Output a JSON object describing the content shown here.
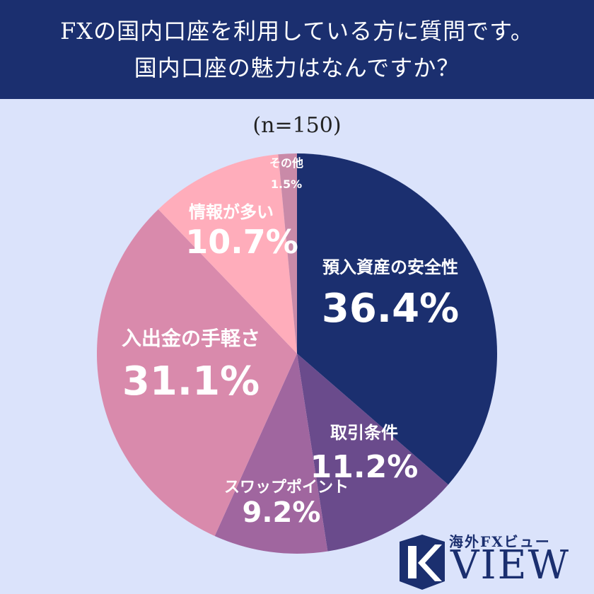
{
  "header": {
    "line1": "FXの国内口座を利用している方に質問です。",
    "line2": "国内口座の魅力はなんですか？"
  },
  "chart_data": {
    "type": "pie",
    "title": "FXの国内口座を利用している方に質問です。国内口座の魅力はなんですか？",
    "subtitle": "(n=150)",
    "slices": [
      {
        "label": "預入資産の安全性",
        "value": 36.4,
        "value_label": "36.4%",
        "color": "#1b2f6f"
      },
      {
        "label": "取引条件",
        "value": 11.2,
        "value_label": "11.2%",
        "color": "#6a4b8c"
      },
      {
        "label": "スワップポイント",
        "value": 9.2,
        "value_label": "9.2%",
        "color": "#a0669f"
      },
      {
        "label": "入出金の手軽さ",
        "value": 31.1,
        "value_label": "31.1%",
        "color": "#d98aac"
      },
      {
        "label": "情報が多い",
        "value": 10.7,
        "value_label": "10.7%",
        "color": "#ffadbb"
      },
      {
        "label": "その他",
        "value": 1.5,
        "value_label": "1.5%",
        "color": "#c98aa8"
      }
    ]
  },
  "logo": {
    "brand_jp": "海外FXビュー",
    "brand_view": "VIEW"
  }
}
